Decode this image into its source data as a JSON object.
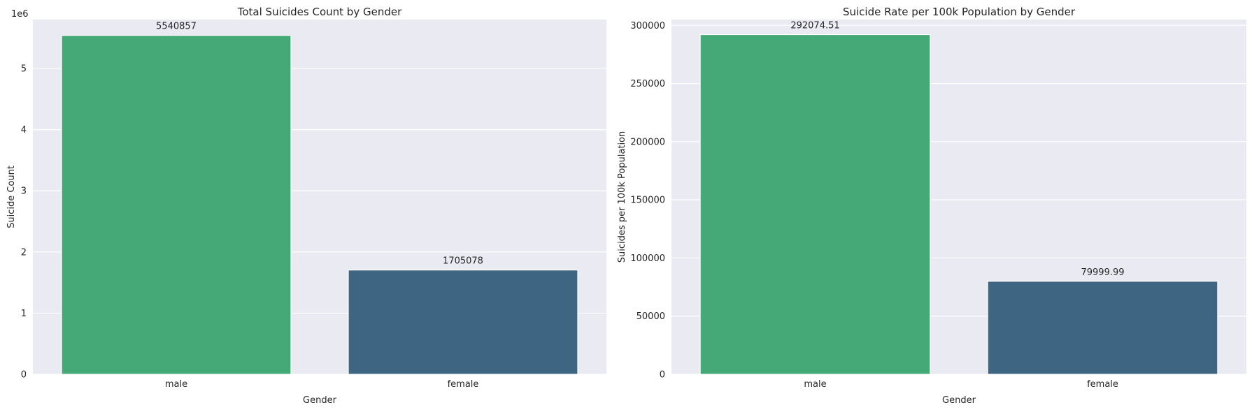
{
  "chart_data": [
    {
      "type": "bar",
      "title": "Total Suicides Count by Gender",
      "xlabel": "Gender",
      "ylabel": "Suicide Count",
      "categories": [
        "male",
        "female"
      ],
      "values": [
        5540857,
        1705078
      ],
      "data_labels": [
        "5540857",
        "1705078"
      ],
      "ylim": [
        0,
        5800000
      ],
      "ytick_values": [
        0,
        1000000,
        2000000,
        3000000,
        4000000,
        5000000
      ],
      "ytick_labels": [
        "0",
        "1",
        "2",
        "3",
        "4",
        "5"
      ],
      "y_offset_label": "1e6",
      "bar_colors": [
        "#45a877",
        "#3e6682"
      ],
      "grid": true
    },
    {
      "type": "bar",
      "title": "Suicide Rate per 100k Population by Gender",
      "xlabel": "Gender",
      "ylabel": "Suicides per 100k Population",
      "categories": [
        "male",
        "female"
      ],
      "values": [
        292074.51,
        79999.99
      ],
      "data_labels": [
        "292074.51",
        "79999.99"
      ],
      "ylim": [
        0,
        305000
      ],
      "ytick_values": [
        0,
        50000,
        100000,
        150000,
        200000,
        250000,
        300000
      ],
      "ytick_labels": [
        "0",
        "50000",
        "100000",
        "150000",
        "200000",
        "250000",
        "300000"
      ],
      "y_offset_label": "",
      "bar_colors": [
        "#45a877",
        "#3e6682"
      ],
      "grid": true
    }
  ]
}
